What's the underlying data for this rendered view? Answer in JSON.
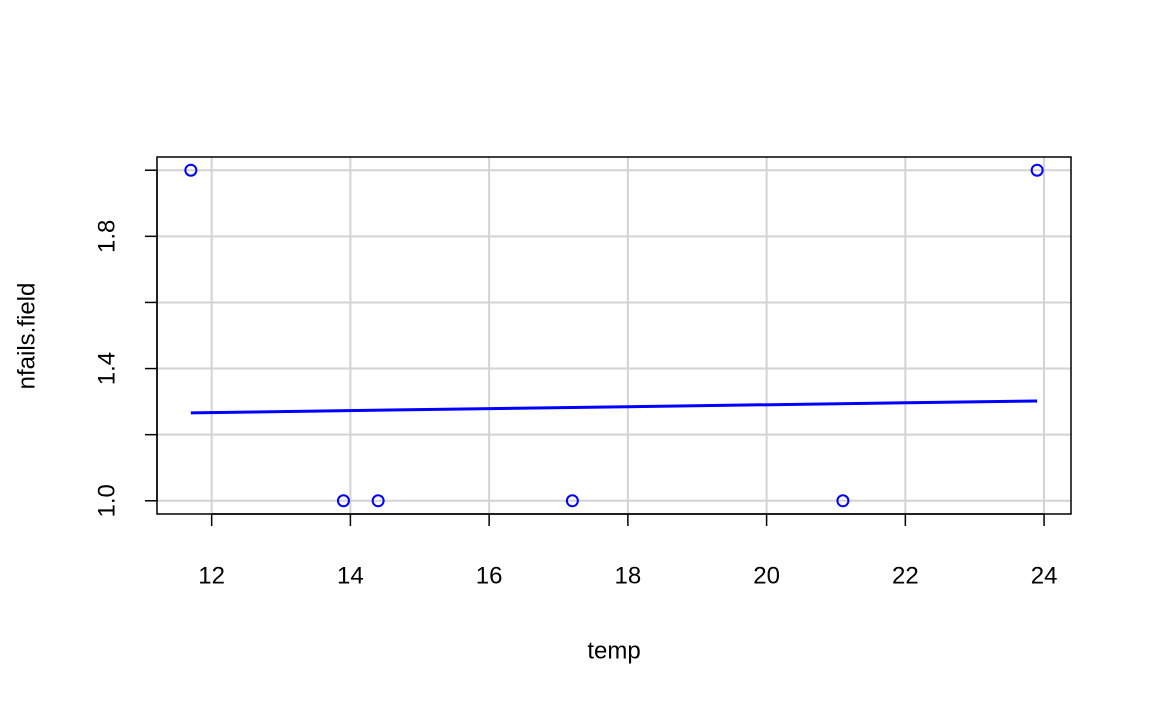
{
  "chart_data": {
    "type": "scatter",
    "x_label": "temp",
    "y_label": "nfails.field",
    "xlim": [
      11.212,
      24.388
    ],
    "ylim": [
      0.96,
      2.04
    ],
    "xticks": [
      12,
      14,
      16,
      18,
      20,
      22,
      24
    ],
    "yticks": [
      {
        "value": 1,
        "label": "1.0"
      },
      1.4,
      1.8
    ],
    "yminor_ticks": [
      1.2,
      1.6,
      2.0
    ],
    "grid": true,
    "points": {
      "color": "#0000ff",
      "x": [
        11.7,
        13.9,
        14.4,
        17.2,
        21.1,
        23.9
      ],
      "y": [
        2,
        1,
        1,
        1,
        1,
        2
      ]
    },
    "fit_line": {
      "color": "#0000ff",
      "x": [
        11.7,
        23.9
      ],
      "y": [
        1.266,
        1.302
      ]
    }
  }
}
